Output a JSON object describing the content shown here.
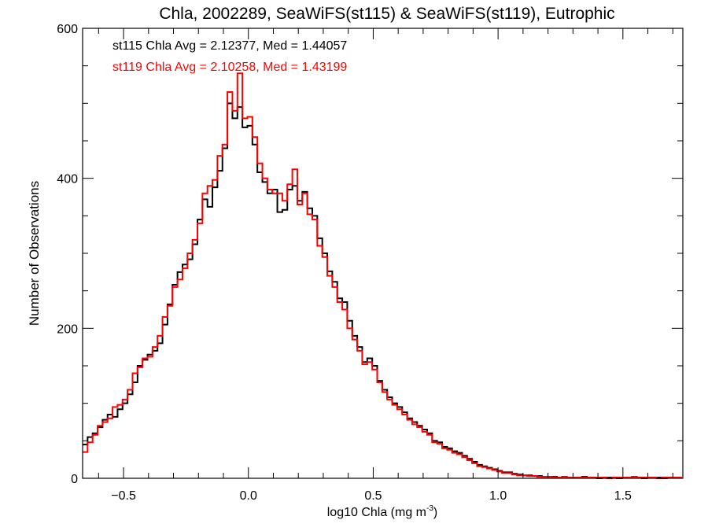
{
  "chart_data": {
    "type": "histogram-step",
    "title": "Chla, 2002289, SeaWiFS(st115) & SeaWiFS(st119), Eutrophic",
    "xlabel_main": "log10 Chla (mg m",
    "xlabel_sup": "-3",
    "xlabel_close": ")",
    "ylabel": "Number of Observations",
    "xlim": [
      -0.664,
      1.74
    ],
    "ylim": [
      0,
      600
    ],
    "x_ticks": [
      {
        "value": -0.5,
        "label": "−0.5"
      },
      {
        "value": 0.0,
        "label": "0.0"
      },
      {
        "value": 0.5,
        "label": "0.5"
      },
      {
        "value": 1.0,
        "label": "1.0"
      },
      {
        "value": 1.5,
        "label": "1.5"
      }
    ],
    "x_minor_step": 0.1,
    "y_ticks": [
      {
        "value": 0,
        "label": "0"
      },
      {
        "value": 200,
        "label": "200"
      },
      {
        "value": 400,
        "label": "400"
      },
      {
        "value": 600,
        "label": "600"
      }
    ],
    "y_minor_step": 50,
    "bin_start": -0.664,
    "bin_width": 0.02,
    "annotations": [
      {
        "text": "st115 Chla Avg = 2.12377, Med = 1.44057",
        "color": "#000000"
      },
      {
        "text": "st119 Chla Avg = 2.10258, Med = 1.43199",
        "color": "#ff0000"
      }
    ],
    "series": [
      {
        "name": "st115",
        "color": "#000000",
        "values": [
          45,
          55,
          60,
          68,
          78,
          85,
          82,
          92,
          100,
          112,
          128,
          150,
          158,
          165,
          170,
          180,
          205,
          232,
          258,
          275,
          285,
          292,
          312,
          345,
          372,
          362,
          388,
          410,
          440,
          500,
          480,
          495,
          468,
          470,
          445,
          408,
          395,
          380,
          385,
          355,
          358,
          385,
          390,
          370,
          382,
          360,
          350,
          320,
          300,
          276,
          262,
          240,
          235,
          210,
          190,
          175,
          155,
          160,
          150,
          130,
          118,
          108,
          100,
          95,
          88,
          80,
          75,
          70,
          65,
          60,
          50,
          48,
          42,
          40,
          36,
          34,
          30,
          26,
          22,
          18,
          16,
          14,
          12,
          10,
          8,
          8,
          6,
          5,
          4,
          4,
          3,
          3,
          2,
          2,
          2,
          1,
          2,
          1,
          1,
          1,
          2,
          1,
          1,
          0,
          1,
          1,
          1,
          0,
          1,
          1,
          2,
          1,
          0,
          1,
          1,
          1,
          0,
          1,
          1,
          1
        ]
      },
      {
        "name": "st119",
        "color": "#ff0000",
        "values": [
          35,
          48,
          58,
          70,
          75,
          80,
          95,
          98,
          105,
          118,
          140,
          148,
          160,
          162,
          175,
          190,
          215,
          230,
          255,
          265,
          280,
          300,
          318,
          340,
          380,
          390,
          398,
          430,
          445,
          515,
          490,
          540,
          480,
          482,
          455,
          420,
          400,
          385,
          380,
          380,
          370,
          392,
          412,
          365,
          380,
          352,
          345,
          310,
          295,
          270,
          255,
          235,
          225,
          200,
          185,
          170,
          152,
          155,
          145,
          128,
          115,
          105,
          98,
          92,
          85,
          78,
          72,
          68,
          62,
          58,
          48,
          46,
          40,
          38,
          34,
          32,
          28,
          24,
          20,
          16,
          15,
          13,
          11,
          9,
          7,
          7,
          5,
          4,
          4,
          3,
          3,
          2,
          2,
          2,
          1,
          1,
          2,
          1,
          1,
          1,
          1,
          1,
          1,
          1,
          1,
          0,
          1,
          1,
          1,
          1,
          2,
          1,
          1,
          1,
          1,
          0,
          1,
          1,
          1,
          1
        ]
      }
    ]
  }
}
